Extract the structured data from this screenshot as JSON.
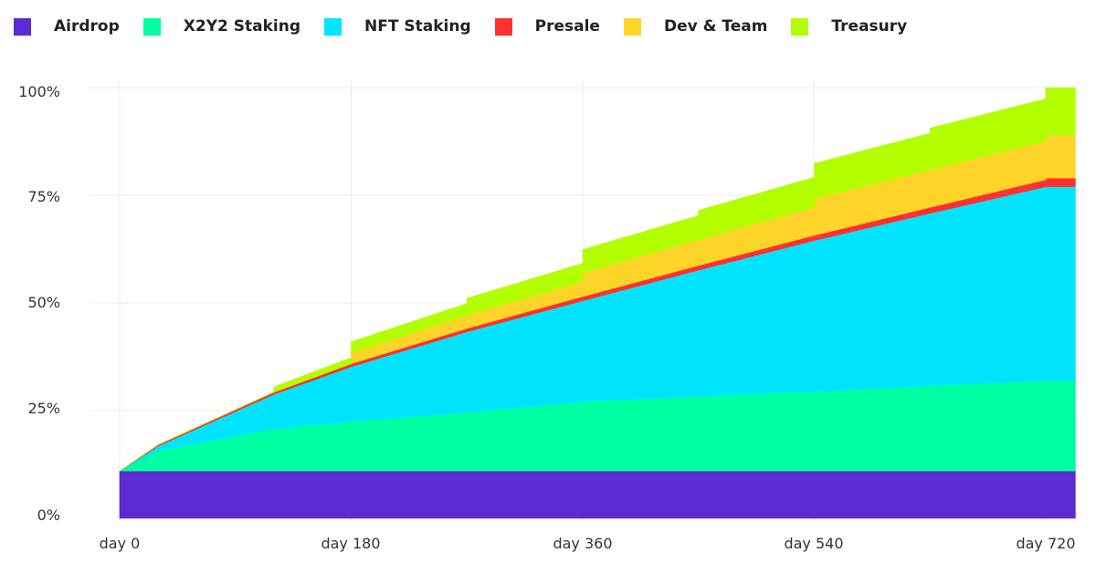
{
  "chart_data": {
    "type": "area",
    "stacked": true,
    "title": "",
    "xlabel": "",
    "ylabel": "",
    "x_ticks": [
      "day 0",
      "day 180",
      "day 360",
      "day 540",
      "day 720"
    ],
    "y_ticks": [
      "0%",
      "25%",
      "50%",
      "75%",
      "100%"
    ],
    "xlim": [
      0,
      743
    ],
    "ylim": [
      0,
      100
    ],
    "grid": true,
    "legend_position": "top-left",
    "x": [
      0,
      30,
      120,
      120,
      180,
      180,
      270,
      270,
      360,
      360,
      450,
      450,
      540,
      540,
      630,
      630,
      720,
      720,
      743
    ],
    "series": [
      {
        "name": "Airdrop",
        "color": "#5c2bd1",
        "values": [
          11,
          11,
          11,
          11,
          11,
          11,
          11,
          11,
          11,
          11,
          11,
          11,
          11,
          11,
          11,
          11,
          11,
          11,
          11
        ]
      },
      {
        "name": "X2Y2 Staking",
        "color": "#00ffa3",
        "values": [
          0,
          4.7,
          9.8,
          9.8,
          11.5,
          11.5,
          13.6,
          13.6,
          16.1,
          16.1,
          17.4,
          17.4,
          18.5,
          18.5,
          19.8,
          19.8,
          21,
          21,
          21
        ]
      },
      {
        "name": "NFT Staking",
        "color": "#00e5ff",
        "values": [
          0,
          1.1,
          8,
          8,
          12.7,
          12.7,
          18.7,
          18.7,
          23.4,
          23.4,
          29.2,
          29.2,
          35,
          35,
          40,
          40,
          45,
          45,
          45
        ]
      },
      {
        "name": "Presale",
        "color": "#ff3030",
        "values": [
          0,
          0.3,
          0.5,
          0.5,
          0.7,
          0.7,
          0.8,
          0.8,
          1,
          1,
          1.1,
          1.1,
          1.2,
          1.2,
          1.4,
          1.4,
          1.6,
          2,
          2
        ]
      },
      {
        "name": "Dev & Team",
        "color": "#ffd428",
        "values": [
          0,
          0,
          0,
          0,
          0,
          2.5,
          3,
          3,
          3.5,
          5.5,
          6,
          6,
          6.5,
          8.5,
          8.8,
          8.8,
          9,
          10,
          10
        ]
      },
      {
        "name": "Treasury",
        "color": "#b3ff00",
        "values": [
          0,
          0,
          0,
          1.2,
          1.4,
          2.6,
          2.8,
          4,
          4.2,
          5.4,
          5.6,
          6.8,
          7,
          8.2,
          8.4,
          9.6,
          9.8,
          11,
          11
        ]
      }
    ]
  }
}
